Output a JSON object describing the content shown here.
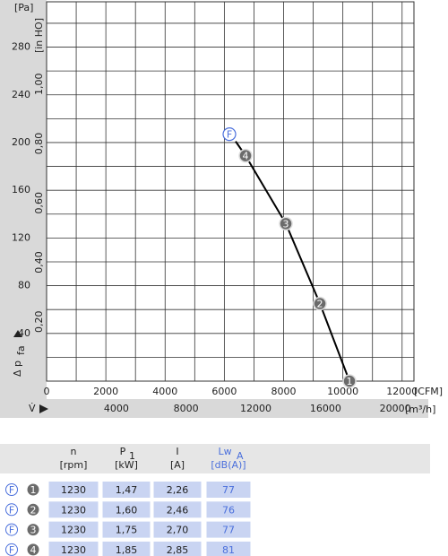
{
  "chart_data": {
    "type": "line",
    "y_unit": "[Pa]",
    "y2_unit": "[in HO]",
    "y_label": "Δ p",
    "y_label_sub": "fa",
    "x_label": "V̇",
    "x_unit": "[CFM]",
    "x2_unit": "[m³/h]",
    "xlim": [
      0,
      12400
    ],
    "xticks": [
      0,
      2000,
      4000,
      6000,
      8000,
      10000,
      12000
    ],
    "xminorticks": [
      1000,
      3000,
      5000,
      7000,
      9000,
      11000
    ],
    "x2lim": [
      0,
      21070
    ],
    "x2ticks": [
      4000,
      8000,
      12000,
      16000,
      20000
    ],
    "ylim": [
      0,
      318
    ],
    "yticks": [
      40,
      80,
      120,
      160,
      200,
      240,
      280
    ],
    "yminorticks": [
      20,
      60,
      100,
      140,
      180,
      220,
      260,
      300
    ],
    "y2lim": [
      0,
      1.277
    ],
    "y2ticks": [
      {
        "value": 0.2,
        "label": "0,20"
      },
      {
        "value": 0.4,
        "label": "0,40"
      },
      {
        "value": 0.6,
        "label": "0,60"
      },
      {
        "value": 0.8,
        "label": "0,80"
      },
      {
        "value": 1.0,
        "label": "1,00"
      }
    ],
    "grid": true,
    "series": [
      {
        "color": "#000000",
        "x": [
          6380,
          6715,
          8076,
          9226,
          10224
        ],
        "values": [
          201,
          189,
          132,
          65,
          0
        ]
      }
    ],
    "points": [
      {
        "label": "4",
        "x": 6715,
        "y": 189
      },
      {
        "label": "3",
        "x": 8076,
        "y": 132
      },
      {
        "label": "2",
        "x": 9226,
        "y": 65
      },
      {
        "label": "1",
        "x": 10224,
        "y": 0
      }
    ],
    "mode_marker": {
      "label": "F",
      "x": 6170,
      "y": 207
    }
  },
  "table": {
    "columns": [
      {
        "name": "n",
        "unit": "[rpm]"
      },
      {
        "name": "P",
        "sub": "1",
        "unit": "[kW]"
      },
      {
        "name": "I",
        "unit": "[A]"
      },
      {
        "name": "Lw",
        "sub": "A",
        "unit": "[dB(A)]"
      }
    ],
    "rows": [
      {
        "mode": "F",
        "point": "1",
        "cells": [
          "1230",
          "1,47",
          "2,26",
          "77"
        ]
      },
      {
        "mode": "F",
        "point": "2",
        "cells": [
          "1230",
          "1,60",
          "2,46",
          "76"
        ]
      },
      {
        "mode": "F",
        "point": "3",
        "cells": [
          "1230",
          "1,75",
          "2,70",
          "77"
        ]
      },
      {
        "mode": "F",
        "point": "4",
        "cells": [
          "1230",
          "1,85",
          "2,85",
          "81"
        ]
      }
    ]
  }
}
